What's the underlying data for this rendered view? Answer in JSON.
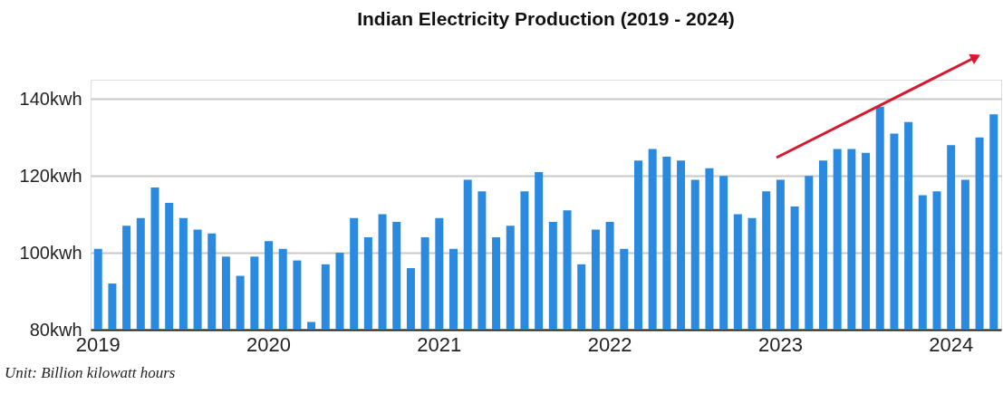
{
  "chart_data": {
    "type": "bar",
    "title": "Indian Electricity Production (2019 - 2024)",
    "categories": [
      "2019",
      null,
      null,
      null,
      null,
      null,
      null,
      null,
      null,
      null,
      null,
      null,
      "2020",
      null,
      null,
      null,
      null,
      null,
      null,
      null,
      null,
      null,
      null,
      null,
      "2021",
      null,
      null,
      null,
      null,
      null,
      null,
      null,
      null,
      null,
      null,
      null,
      "2022",
      null,
      null,
      null,
      null,
      null,
      null,
      null,
      null,
      null,
      null,
      null,
      "2023",
      null,
      null,
      null,
      null,
      null,
      null,
      null,
      null,
      null,
      null,
      null,
      "2024",
      null,
      null,
      null
    ],
    "values": [
      101,
      92,
      107,
      109,
      117,
      113,
      109,
      106,
      105,
      99,
      94,
      99,
      103,
      101,
      98,
      82,
      97,
      100,
      109,
      104,
      110,
      108,
      96,
      104,
      109,
      101,
      119,
      116,
      104,
      107,
      116,
      121,
      108,
      111,
      97,
      106,
      108,
      101,
      124,
      127,
      125,
      124,
      119,
      122,
      120,
      110,
      109,
      116,
      119,
      112,
      120,
      124,
      127,
      127,
      126,
      138,
      131,
      134,
      115,
      116,
      128,
      119,
      130,
      136
    ],
    "color": "#2a8ae0",
    "ylim": [
      80,
      145
    ],
    "yticks": [
      {
        "value": 80,
        "label": "80kwh"
      },
      {
        "value": 100,
        "label": "100kwh"
      },
      {
        "value": 120,
        "label": "120kwh"
      },
      {
        "value": 140,
        "label": "140kwh"
      }
    ],
    "grid": "y",
    "annotations": [
      "Unit: Billion kilowatt hours"
    ]
  }
}
